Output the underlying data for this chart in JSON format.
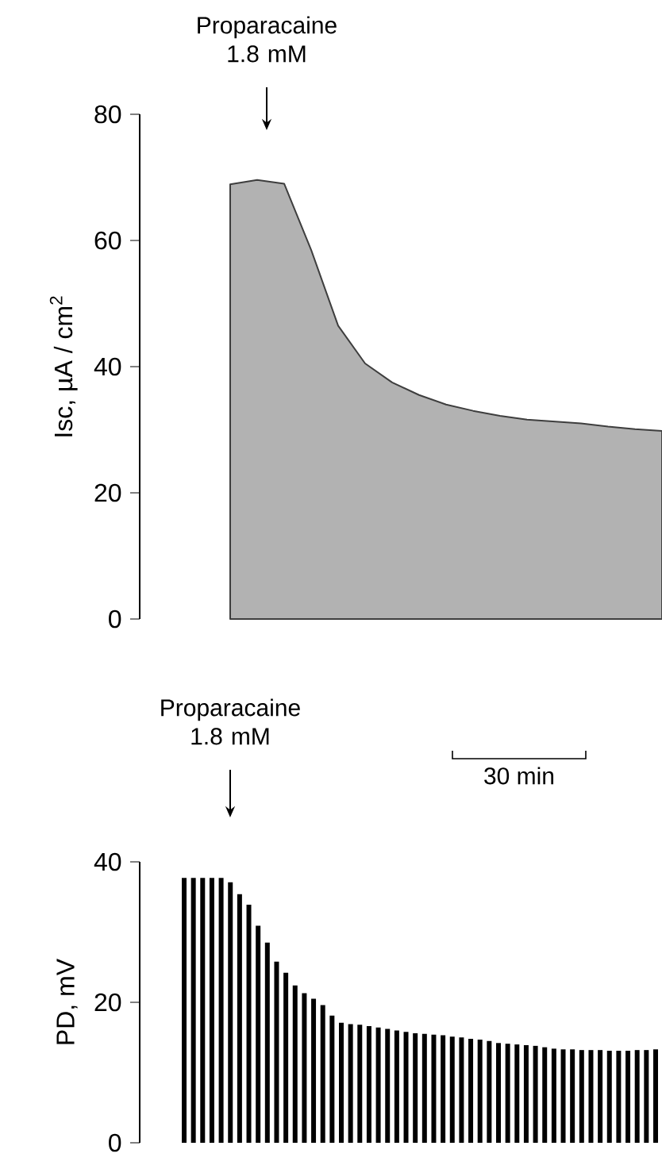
{
  "chart_data": [
    {
      "type": "area",
      "ylabel": "Isc, µA / cm$^{2}$",
      "categories": [
        null,
        null,
        null,
        null,
        null,
        null,
        null,
        null,
        null,
        null,
        null,
        null,
        null,
        null,
        null,
        null,
        null
      ],
      "values": [
        68.9,
        69.6,
        69.0,
        58.5,
        46.5,
        40.5,
        37.5,
        35.5,
        34.0,
        33.0,
        32.2,
        31.6,
        31.3,
        31.0,
        30.5,
        30.1,
        29.8
      ],
      "color": "#b2b2b2",
      "ylim": [
        0,
        80
      ],
      "yticks": [
        0,
        20,
        40,
        60,
        80
      ],
      "tick_labels": "y",
      "annotations": [
        "Proparacaine 1.8 mM"
      ]
    },
    {
      "type": "bar",
      "ylabel": "PD, mV",
      "categories": [
        null,
        null,
        null,
        null,
        null,
        null,
        null,
        null,
        null,
        null,
        null,
        null,
        null,
        null,
        null,
        null,
        null,
        null,
        null,
        null,
        null,
        null,
        null,
        null,
        null,
        null,
        null,
        null,
        null,
        null,
        null,
        null,
        null,
        null,
        null,
        null,
        null,
        null,
        null,
        null,
        null,
        null,
        null,
        null,
        null,
        null,
        null,
        null,
        null,
        null,
        null,
        null
      ],
      "values": [
        37.7,
        37.7,
        37.7,
        37.7,
        37.7,
        37.1,
        35.4,
        33.9,
        30.9,
        28.5,
        25.8,
        24.2,
        22.4,
        21.3,
        20.5,
        19.6,
        18.1,
        17.1,
        16.9,
        16.8,
        16.6,
        16.4,
        16.2,
        16.0,
        15.8,
        15.6,
        15.5,
        15.4,
        15.3,
        15.1,
        15.0,
        14.8,
        14.7,
        14.5,
        14.2,
        14.1,
        14.0,
        13.9,
        13.8,
        13.6,
        13.4,
        13.3,
        13.3,
        13.2,
        13.2,
        13.2,
        13.1,
        13.1,
        13.1,
        13.2,
        13.2,
        13.3
      ],
      "color": "#000000",
      "ylim": [
        0,
        40
      ],
      "yticks": [
        0,
        20,
        40
      ],
      "tick_labels": "y",
      "annotations": [
        "Proparacaine 1.8 mM",
        "30 min"
      ]
    }
  ]
}
